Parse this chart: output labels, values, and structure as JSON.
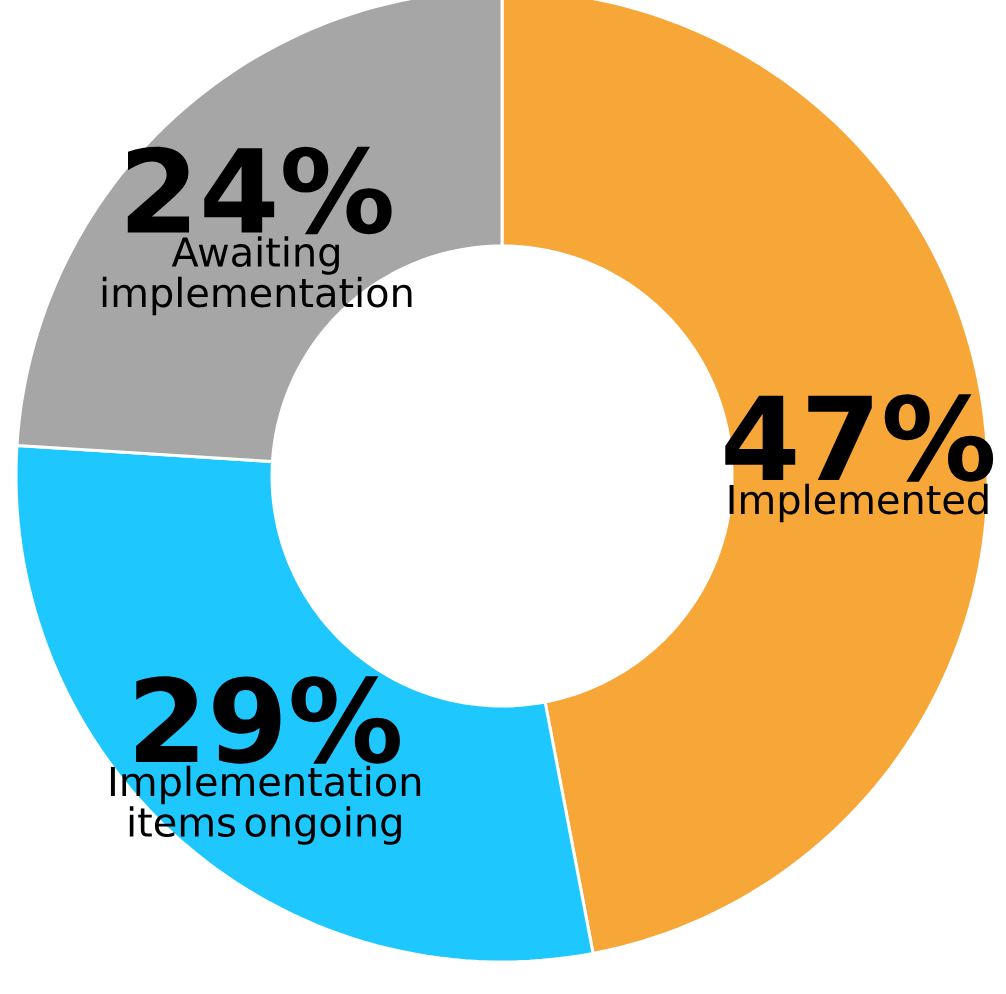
{
  "chart_data": {
    "type": "donut",
    "categories": [
      "Implemented",
      "Implementation items ongoing",
      "Awaiting implementation"
    ],
    "values": [
      47,
      29,
      24
    ],
    "value_labels": [
      "47%",
      "29%",
      "24%"
    ],
    "colors": [
      "#f7a738",
      "#1ec8ff",
      "#a6a6a6"
    ]
  }
}
